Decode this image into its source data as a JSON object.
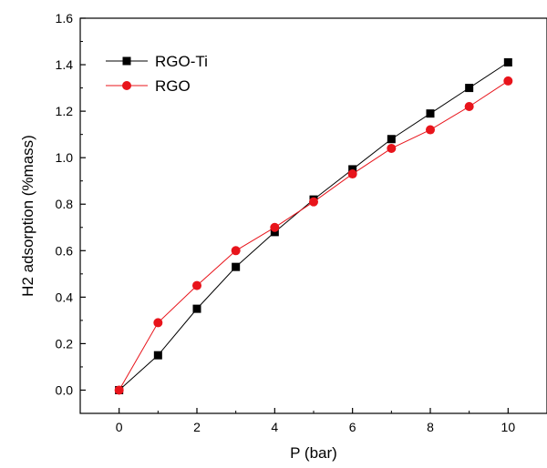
{
  "chart_data": {
    "type": "line",
    "title": "",
    "xlabel": "P (bar)",
    "ylabel": "H2 adsorption (%mass)",
    "xlim": [
      -1,
      11
    ],
    "ylim": [
      -0.1,
      1.6
    ],
    "xticks": [
      0,
      2,
      4,
      6,
      8,
      10
    ],
    "yticks": [
      0.0,
      0.2,
      0.4,
      0.6,
      0.8,
      1.0,
      1.2,
      1.4,
      1.6
    ],
    "ytick_labels": [
      "0.0",
      "0.2",
      "0.4",
      "0.6",
      "0.8",
      "1.0",
      "1.2",
      "1.4",
      "1.6"
    ],
    "grid": false,
    "legend_position": "top-left",
    "x": [
      0,
      1,
      2,
      3,
      4,
      5,
      6,
      7,
      8,
      9,
      10
    ],
    "series": [
      {
        "name": "RGO-Ti",
        "color": "#000000",
        "marker": "square",
        "values": [
          0.0,
          0.15,
          0.35,
          0.53,
          0.68,
          0.82,
          0.95,
          1.08,
          1.19,
          1.3,
          1.41
        ]
      },
      {
        "name": "RGO",
        "color": "#e8141b",
        "marker": "circle",
        "values": [
          0.0,
          0.29,
          0.45,
          0.6,
          0.7,
          0.81,
          0.93,
          1.04,
          1.12,
          1.22,
          1.33
        ]
      }
    ]
  }
}
